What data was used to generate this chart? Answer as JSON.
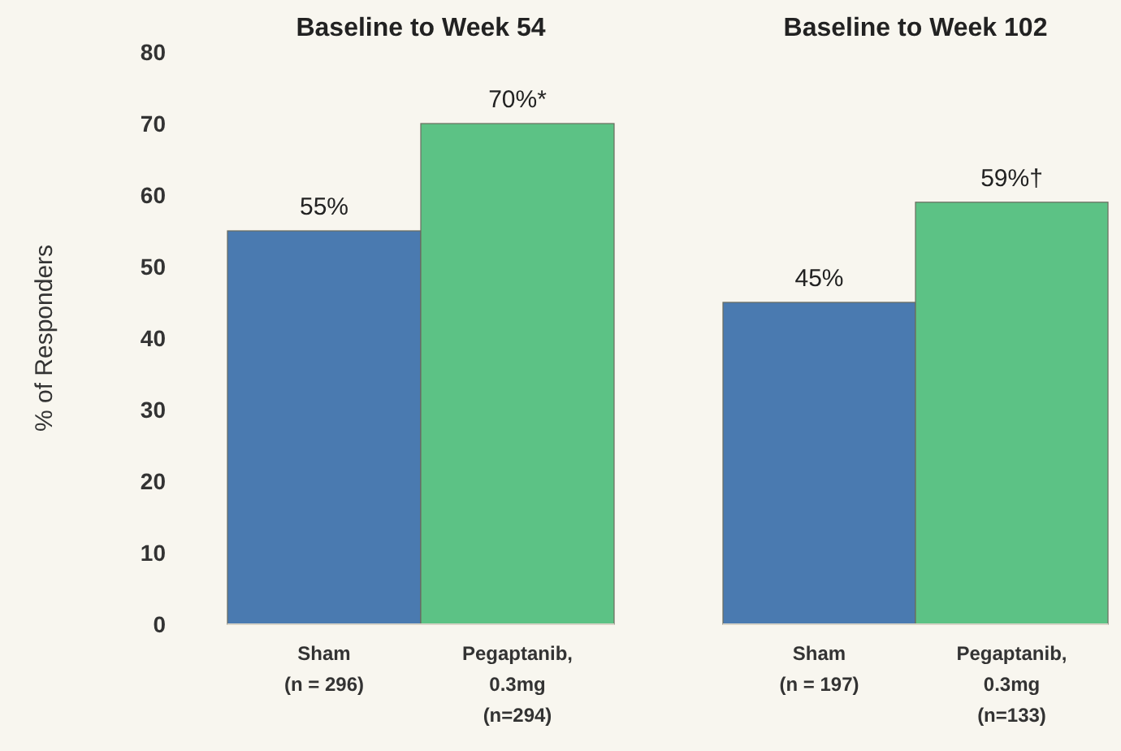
{
  "chart_data": [
    {
      "type": "bar",
      "title": "Baseline to Week 54",
      "ylabel": "% of Responders",
      "categories": [
        "Sham\n(n = 296)",
        "Pegaptanib,\n0.3mg\n(n=294)"
      ],
      "values": [
        55,
        70
      ],
      "colors": [
        "#4a7ab0",
        "#5cc285"
      ],
      "value_labels": [
        "55%",
        "70%*"
      ],
      "ylim": [
        0,
        80
      ],
      "yticks": [
        0,
        10,
        20,
        30,
        40,
        50,
        60,
        70,
        80
      ]
    },
    {
      "type": "bar",
      "title": "Baseline to Week 102",
      "categories": [
        "Sham\n(n = 197)",
        "Pegaptanib,\n0.3mg\n(n=133)"
      ],
      "values": [
        45,
        59
      ],
      "colors": [
        "#4a7ab0",
        "#5cc285"
      ],
      "value_labels": [
        "45%",
        "59%†"
      ],
      "ylim": [
        0,
        80
      ],
      "tick_labels": "x"
    }
  ]
}
